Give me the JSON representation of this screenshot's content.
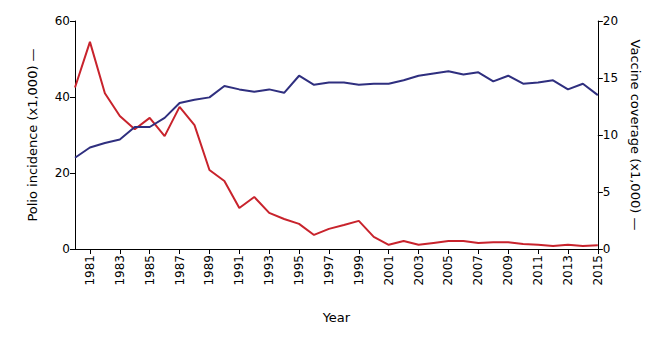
{
  "chart_data": {
    "type": "line",
    "x_label": "Year",
    "y_label": "Polio incidence (x1,000) —",
    "y2_label": "Vaccine coverage (x1,000) —",
    "x": [
      1980,
      1981,
      1982,
      1983,
      1984,
      1985,
      1986,
      1987,
      1988,
      1989,
      1990,
      1991,
      1992,
      1993,
      1994,
      1995,
      1996,
      1997,
      1998,
      1999,
      2000,
      2001,
      2002,
      2003,
      2004,
      2005,
      2006,
      2007,
      2008,
      2009,
      2010,
      2011,
      2012,
      2013,
      2014,
      2015
    ],
    "xlim": [
      1980,
      2015
    ],
    "xticks": [
      1981,
      1983,
      1985,
      1987,
      1989,
      1991,
      1993,
      1995,
      1997,
      1999,
      2001,
      2003,
      2005,
      2007,
      2009,
      2011,
      2013,
      2015
    ],
    "ylim": [
      0,
      60
    ],
    "yticks": [
      0,
      20,
      40,
      60
    ],
    "y2lim": [
      0,
      20
    ],
    "y2ticks": [
      0,
      5,
      10,
      15,
      20
    ],
    "grid": false,
    "series": [
      {
        "name": "Polio incidence",
        "color": "#c8232c",
        "axis": "y",
        "values": [
          42.5,
          54.5,
          41,
          35,
          31.5,
          34.5,
          29.7,
          37.4,
          32.6,
          20.8,
          17.9,
          10.8,
          13.7,
          9.5,
          7.9,
          6.6,
          3.7,
          5.3,
          6.3,
          7.4,
          3.2,
          1.1,
          2.1,
          1.1,
          1.6,
          2.1,
          2.1,
          1.6,
          1.8,
          1.8,
          1.3,
          1.1,
          0.8,
          1.1,
          0.8,
          1.0
        ]
      },
      {
        "name": "Vaccine coverage",
        "color": "#2f2f7f",
        "axis": "y2",
        "values": [
          8.0,
          8.9,
          9.3,
          9.6,
          10.7,
          10.7,
          11.5,
          12.8,
          13.1,
          13.3,
          14.3,
          14.0,
          13.8,
          14.0,
          13.7,
          15.2,
          14.4,
          14.6,
          14.6,
          14.4,
          14.5,
          14.5,
          14.8,
          15.2,
          15.4,
          15.6,
          15.3,
          15.5,
          14.7,
          15.2,
          14.5,
          14.6,
          14.8,
          14.0,
          14.5,
          13.5
        ]
      }
    ]
  }
}
